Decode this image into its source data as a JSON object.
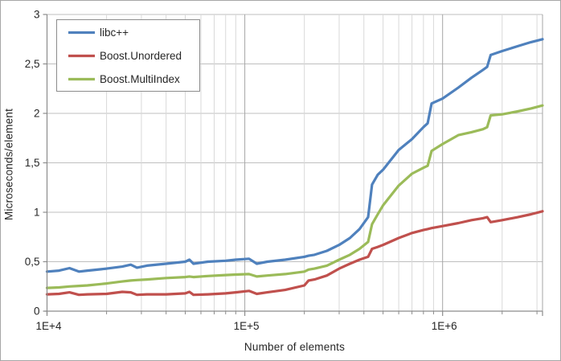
{
  "chart_data": {
    "type": "line",
    "title": "",
    "xlabel": "Number of elements",
    "ylabel": "Microseconds/element",
    "x_scale": "log",
    "xlim": [
      10000,
      3200000
    ],
    "ylim": [
      0,
      3
    ],
    "grid": {
      "horizontal_major": true,
      "vertical_minor_log": true
    },
    "legend_position": "top-left-inside",
    "x_major_ticks": [
      {
        "value": 10000,
        "label": "1E+4"
      },
      {
        "value": 100000,
        "label": "1E+5"
      },
      {
        "value": 1000000,
        "label": "1E+6"
      }
    ],
    "x_minor_gridlines": [
      20000,
      30000,
      40000,
      50000,
      60000,
      70000,
      80000,
      90000,
      200000,
      300000,
      400000,
      500000,
      600000,
      700000,
      800000,
      900000,
      2000000,
      3000000
    ],
    "y_ticks": [
      {
        "value": 0,
        "label": "0"
      },
      {
        "value": 0.5,
        "label": "0,5"
      },
      {
        "value": 1,
        "label": "1"
      },
      {
        "value": 1.5,
        "label": "1,5"
      },
      {
        "value": 2,
        "label": "2"
      },
      {
        "value": 2.5,
        "label": "2,5"
      },
      {
        "value": 3,
        "label": "3"
      }
    ],
    "x": [
      10000,
      11500,
      13000,
      14500,
      16000,
      20000,
      24000,
      26500,
      28500,
      32000,
      40000,
      50000,
      52500,
      55000,
      65000,
      80000,
      90000,
      105000,
      115000,
      130000,
      160000,
      200000,
      210000,
      225000,
      260000,
      300000,
      340000,
      380000,
      420000,
      440000,
      470000,
      500000,
      600000,
      700000,
      800000,
      840000,
      880000,
      1000000,
      1200000,
      1400000,
      1600000,
      1680000,
      1750000,
      2000000,
      2400000,
      2800000,
      3200000
    ],
    "series": [
      {
        "id": "libcpp",
        "name": "libc++",
        "color": "#4f81bd",
        "values": [
          0.4,
          0.41,
          0.435,
          0.4,
          0.41,
          0.43,
          0.45,
          0.47,
          0.44,
          0.46,
          0.48,
          0.5,
          0.52,
          0.48,
          0.5,
          0.51,
          0.52,
          0.53,
          0.48,
          0.5,
          0.52,
          0.55,
          0.56,
          0.57,
          0.61,
          0.67,
          0.74,
          0.83,
          0.95,
          1.28,
          1.38,
          1.43,
          1.63,
          1.74,
          1.86,
          1.9,
          2.1,
          2.15,
          2.26,
          2.36,
          2.44,
          2.47,
          2.59,
          2.63,
          2.68,
          2.72,
          2.75
        ]
      },
      {
        "id": "boost-unordered",
        "name": "Boost.Unordered",
        "color": "#c0504d",
        "values": [
          0.17,
          0.175,
          0.19,
          0.165,
          0.17,
          0.175,
          0.195,
          0.19,
          0.165,
          0.17,
          0.17,
          0.18,
          0.195,
          0.165,
          0.17,
          0.18,
          0.19,
          0.205,
          0.175,
          0.19,
          0.215,
          0.26,
          0.31,
          0.32,
          0.36,
          0.43,
          0.48,
          0.52,
          0.55,
          0.63,
          0.65,
          0.67,
          0.74,
          0.79,
          0.82,
          0.83,
          0.84,
          0.86,
          0.89,
          0.92,
          0.94,
          0.95,
          0.9,
          0.92,
          0.95,
          0.98,
          1.01
        ]
      },
      {
        "id": "boost-multiindex",
        "name": "Boost.MultiIndex",
        "color": "#9bbb59",
        "values": [
          0.235,
          0.24,
          0.25,
          0.255,
          0.26,
          0.28,
          0.3,
          0.31,
          0.315,
          0.32,
          0.335,
          0.345,
          0.35,
          0.345,
          0.355,
          0.365,
          0.37,
          0.375,
          0.35,
          0.36,
          0.375,
          0.4,
          0.42,
          0.43,
          0.46,
          0.52,
          0.57,
          0.63,
          0.7,
          0.88,
          0.98,
          1.07,
          1.27,
          1.39,
          1.45,
          1.47,
          1.62,
          1.69,
          1.78,
          1.81,
          1.84,
          1.86,
          1.98,
          1.99,
          2.02,
          2.05,
          2.08
        ]
      }
    ],
    "style": {
      "grid_minor_color": "#d9d9d9",
      "grid_major_color": "#bfbfbf",
      "grid_decade_color": "#a6a6a6",
      "axis_color": "#8c8c8c",
      "text_color": "#262626",
      "legend_border_color": "#8c8c8c",
      "background": "#ffffff",
      "line_width": 3.2
    }
  }
}
